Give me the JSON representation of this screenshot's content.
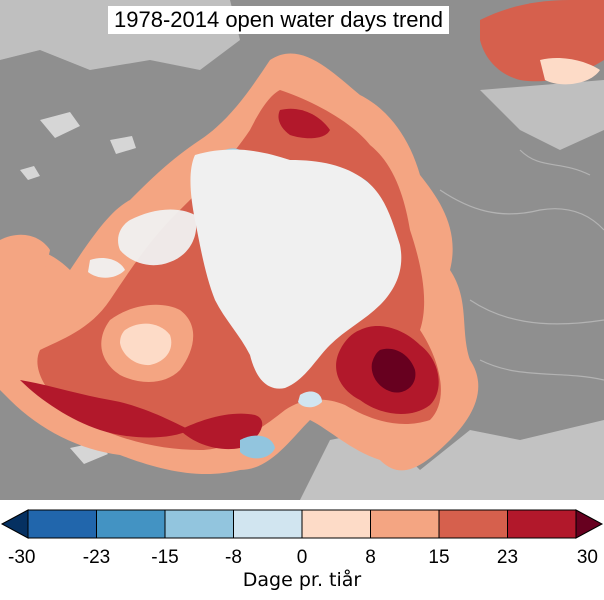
{
  "map": {
    "title": "1978-2014 open water days trend",
    "colors": {
      "land": "#8f8f8f",
      "ocean_background": "#c8c8c8",
      "sea_ice": "#f0f0f0",
      "lakes": "#d6d6d6",
      "rivers": "#b3b3b3"
    }
  },
  "colorbar": {
    "label": "Dage pr. tiår",
    "ticks": [
      "-30",
      "-23",
      "-15",
      "-8",
      "0",
      "8",
      "15",
      "23",
      "30"
    ],
    "bins": [
      {
        "from": -30,
        "to": -23,
        "color": "#2166ac"
      },
      {
        "from": -23,
        "to": -15,
        "color": "#4393c3"
      },
      {
        "from": -15,
        "to": -8,
        "color": "#92c5de"
      },
      {
        "from": -8,
        "to": 0,
        "color": "#d1e5f0"
      },
      {
        "from": 0,
        "to": 8,
        "color": "#fddbc7"
      },
      {
        "from": 8,
        "to": 15,
        "color": "#f4a582"
      },
      {
        "from": 15,
        "to": 23,
        "color": "#d6604d"
      },
      {
        "from": 23,
        "to": 30,
        "color": "#b2182b"
      }
    ],
    "underflow_color": "#053061",
    "overflow_color": "#67001f"
  }
}
